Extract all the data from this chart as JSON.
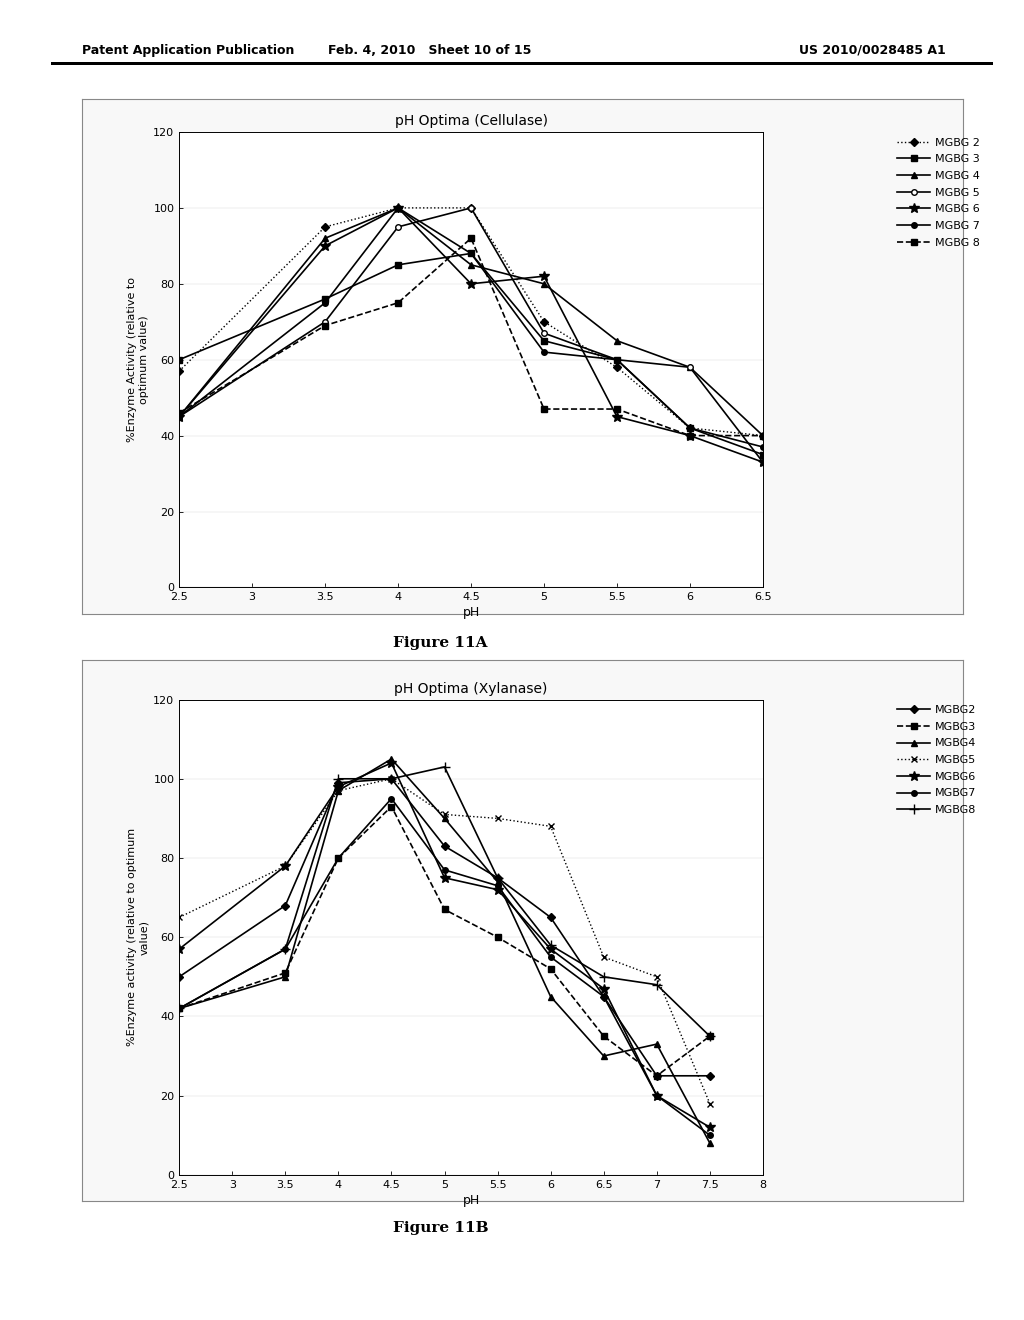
{
  "header_left": "Patent Application Publication",
  "header_mid": "Feb. 4, 2010   Sheet 10 of 15",
  "header_right": "US 2010/0028485 A1",
  "chart_A": {
    "title": "pH Optima (Cellulase)",
    "xlabel": "pH",
    "ylabel": "%Enzyme Activity (relative to\noptimum value)",
    "xlim": [
      2.5,
      6.5
    ],
    "xticks": [
      2.5,
      3,
      3.5,
      4,
      4.5,
      5,
      5.5,
      6,
      6.5
    ],
    "xtick_labels": [
      "2.5",
      "3",
      "3.5",
      "4",
      "4.5",
      "5",
      "5.5",
      "6",
      "6.5"
    ],
    "ylim": [
      0,
      120
    ],
    "yticks": [
      0,
      20,
      40,
      60,
      80,
      100,
      120
    ],
    "series": {
      "MGBG 2": {
        "x": [
          2.5,
          3.5,
          4.0,
          4.5,
          5.0,
          5.5,
          6.0,
          6.5
        ],
        "y": [
          57,
          95,
          100,
          100,
          70,
          58,
          42,
          40
        ],
        "ls": ":",
        "marker": "D",
        "mfc": "black",
        "ms": 4,
        "lw": 1.0
      },
      "MGBG 3": {
        "x": [
          2.5,
          3.5,
          4.0,
          4.5,
          5.0,
          5.5,
          6.0,
          6.5
        ],
        "y": [
          60,
          76,
          85,
          88,
          65,
          60,
          42,
          35
        ],
        "ls": "-",
        "marker": "s",
        "mfc": "black",
        "ms": 4,
        "lw": 1.2
      },
      "MGBG 4": {
        "x": [
          2.5,
          3.5,
          4.0,
          4.5,
          5.0,
          5.5,
          6.0,
          6.5
        ],
        "y": [
          45,
          92,
          100,
          85,
          80,
          65,
          58,
          33
        ],
        "ls": "-",
        "marker": "^",
        "mfc": "black",
        "ms": 5,
        "lw": 1.2
      },
      "MGBG 5": {
        "x": [
          2.5,
          3.5,
          4.0,
          4.5,
          5.0,
          5.5,
          6.0,
          6.5
        ],
        "y": [
          45,
          70,
          95,
          100,
          67,
          60,
          58,
          40
        ],
        "ls": "-",
        "marker": "o",
        "mfc": "white",
        "ms": 4,
        "lw": 1.2
      },
      "MGBG 6": {
        "x": [
          2.5,
          3.5,
          4.0,
          4.5,
          5.0,
          5.5,
          6.0,
          6.5
        ],
        "y": [
          45,
          90,
          100,
          80,
          82,
          45,
          40,
          33
        ],
        "ls": "-",
        "marker": "*",
        "mfc": "black",
        "ms": 7,
        "lw": 1.2
      },
      "MGBG 7": {
        "x": [
          2.5,
          3.5,
          4.0,
          4.5,
          5.0,
          5.5,
          6.0,
          6.5
        ],
        "y": [
          45,
          75,
          100,
          88,
          62,
          60,
          42,
          37
        ],
        "ls": "-",
        "marker": "o",
        "mfc": "black",
        "ms": 4,
        "lw": 1.2
      },
      "MGBG 8": {
        "x": [
          2.5,
          3.5,
          4.0,
          4.5,
          5.0,
          5.5,
          6.0,
          6.5
        ],
        "y": [
          46,
          69,
          75,
          92,
          47,
          47,
          40,
          40
        ],
        "ls": "--",
        "marker": "s",
        "mfc": "black",
        "ms": 4,
        "lw": 1.2
      }
    },
    "legend_order": [
      "MGBG 2",
      "MGBG 3",
      "MGBG 4",
      "MGBG 5",
      "MGBG 6",
      "MGBG 7",
      "MGBG 8"
    ]
  },
  "chart_B": {
    "title": "pH Optima (Xylanase)",
    "xlabel": "pH",
    "ylabel": "%Enzyme activity (relative to optimum\nvalue)",
    "xlim": [
      2.5,
      8.0
    ],
    "xticks": [
      2.5,
      3,
      3.5,
      4,
      4.5,
      5,
      5.5,
      6,
      6.5,
      7,
      7.5,
      8
    ],
    "xtick_labels": [
      "2.5",
      "3",
      "3.5",
      "4",
      "4.5",
      "5",
      "5.5",
      "6",
      "6.5",
      "7",
      "7.5",
      "8"
    ],
    "ylim": [
      0,
      120
    ],
    "yticks": [
      0,
      20,
      40,
      60,
      80,
      100,
      120
    ],
    "series": {
      "MGBG2": {
        "x": [
          2.5,
          3.5,
          4.0,
          4.5,
          5.0,
          5.5,
          6.0,
          6.5,
          7.0,
          7.5
        ],
        "y": [
          50,
          68,
          99,
          100,
          83,
          75,
          65,
          45,
          25,
          25
        ],
        "ls": "-",
        "marker": "D",
        "mfc": "black",
        "ms": 4,
        "lw": 1.2
      },
      "MGBG3": {
        "x": [
          2.5,
          3.5,
          4.0,
          4.5,
          5.0,
          5.5,
          6.0,
          6.5,
          7.0,
          7.5
        ],
        "y": [
          42,
          51,
          80,
          93,
          67,
          60,
          52,
          35,
          25,
          35
        ],
        "ls": "--",
        "marker": "s",
        "mfc": "black",
        "ms": 4,
        "lw": 1.2
      },
      "MGBG4": {
        "x": [
          2.5,
          3.5,
          4.0,
          4.5,
          5.0,
          5.5,
          6.0,
          6.5,
          7.0,
          7.5
        ],
        "y": [
          42,
          50,
          97,
          105,
          90,
          74,
          45,
          30,
          33,
          8
        ],
        "ls": "-",
        "marker": "^",
        "mfc": "black",
        "ms": 5,
        "lw": 1.2
      },
      "MGBG5": {
        "x": [
          2.5,
          3.5,
          4.0,
          4.5,
          5.0,
          5.5,
          6.0,
          6.5,
          7.0,
          7.5
        ],
        "y": [
          65,
          78,
          97,
          100,
          91,
          90,
          88,
          55,
          50,
          18
        ],
        "ls": ":",
        "marker": "x",
        "mfc": "black",
        "ms": 5,
        "lw": 1.0
      },
      "MGBG6": {
        "x": [
          2.5,
          3.5,
          4.0,
          4.5,
          5.0,
          5.5,
          6.0,
          6.5,
          7.0,
          7.5
        ],
        "y": [
          57,
          78,
          98,
          104,
          75,
          72,
          57,
          47,
          20,
          12
        ],
        "ls": "-",
        "marker": "*",
        "mfc": "black",
        "ms": 7,
        "lw": 1.2
      },
      "MGBG7": {
        "x": [
          2.5,
          3.5,
          4.0,
          4.5,
          5.0,
          5.5,
          6.0,
          6.5,
          7.0,
          7.5
        ],
        "y": [
          42,
          57,
          80,
          95,
          77,
          73,
          55,
          45,
          20,
          10
        ],
        "ls": "-",
        "marker": "o",
        "mfc": "black",
        "ms": 4,
        "lw": 1.2
      },
      "MGBG8": {
        "x": [
          2.5,
          3.5,
          4.0,
          4.5,
          5.0,
          5.5,
          6.0,
          6.5,
          7.0,
          7.5
        ],
        "y": [
          42,
          57,
          100,
          100,
          103,
          75,
          58,
          50,
          48,
          35
        ],
        "ls": "-",
        "marker": "+",
        "mfc": "black",
        "ms": 7,
        "lw": 1.2
      }
    },
    "legend_order": [
      "MGBG2",
      "MGBG3",
      "MGBG4",
      "MGBG5",
      "MGBG6",
      "MGBG7",
      "MGBG8"
    ]
  },
  "figure_11A": "Figure 11A",
  "figure_11B": "Figure 11B",
  "bg": "#ffffff"
}
